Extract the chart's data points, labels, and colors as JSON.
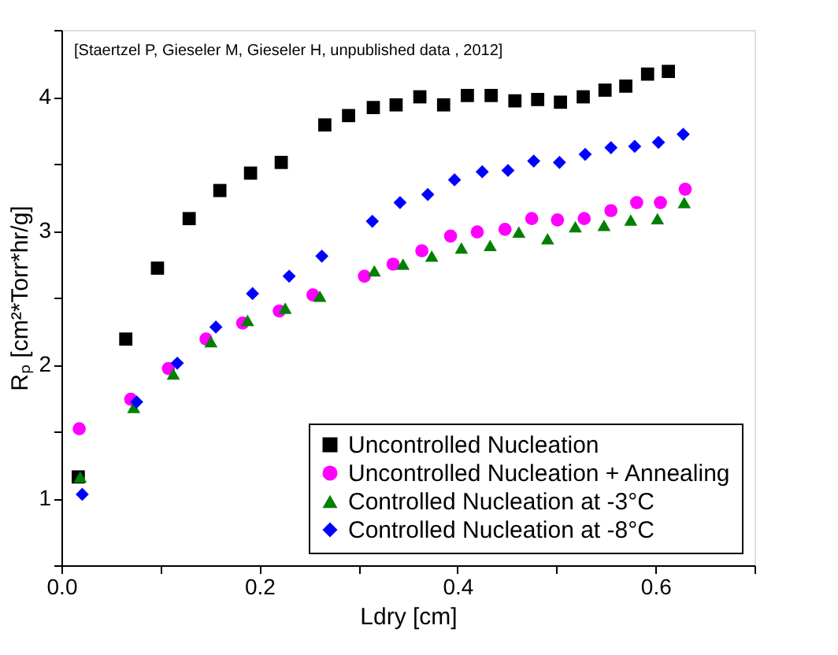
{
  "chart_data": {
    "type": "scatter",
    "xlabel": "Ldry [cm]",
    "ylabel": "Rₚ [cm²*Torr*hr/g]",
    "annotations": [
      "[Staertzel P, Gieseler M, Gieseler H, unpublished data , 2012]"
    ],
    "xlim": [
      0,
      0.7
    ],
    "ylim": [
      0.5,
      4.5
    ],
    "xticks": [
      {
        "value": 0,
        "label": "0.0"
      },
      {
        "value": 0.1,
        "label": null
      },
      {
        "value": 0.2,
        "label": "0.2"
      },
      {
        "value": 0.3,
        "label": null
      },
      {
        "value": 0.4,
        "label": "0.4"
      },
      {
        "value": 0.5,
        "label": null
      },
      {
        "value": 0.6,
        "label": "0.6"
      },
      {
        "value": 0.7,
        "label": null
      }
    ],
    "yticks": [
      {
        "value": 0.5,
        "label": null
      },
      1,
      {
        "value": 1.5,
        "label": null
      },
      2,
      {
        "value": 2.5,
        "label": null
      },
      3,
      {
        "value": 3.5,
        "label": null
      },
      4,
      {
        "value": 4.5,
        "label": null
      }
    ],
    "grid": false,
    "legend": "bottom right",
    "series": [
      {
        "name": "Uncontrolled Nucleation",
        "color": "#000000",
        "marker": "square",
        "x": [
          0.017,
          0.065,
          0.097,
          0.129,
          0.16,
          0.191,
          0.222,
          0.266,
          0.29,
          0.315,
          0.338,
          0.362,
          0.386,
          0.41,
          0.434,
          0.458,
          0.481,
          0.504,
          0.527,
          0.549,
          0.57,
          0.592,
          0.613
        ],
        "values": [
          1.16,
          2.19,
          2.72,
          3.09,
          3.3,
          3.43,
          3.51,
          3.79,
          3.86,
          3.92,
          3.94,
          4.0,
          3.94,
          4.01,
          4.01,
          3.97,
          3.98,
          3.96,
          4.0,
          4.05,
          4.08,
          4.17,
          4.19
        ]
      },
      {
        "name": "Uncontrolled Nucleation + Annealing",
        "color": "#ff00ff",
        "marker": "circle",
        "x": [
          0.018,
          0.07,
          0.108,
          0.146,
          0.183,
          0.22,
          0.254,
          0.306,
          0.335,
          0.364,
          0.393,
          0.42,
          0.448,
          0.475,
          0.501,
          0.528,
          0.555,
          0.581,
          0.605,
          0.63
        ],
        "values": [
          1.52,
          1.74,
          1.97,
          2.19,
          2.31,
          2.4,
          2.52,
          2.66,
          2.75,
          2.85,
          2.96,
          2.99,
          3.01,
          3.09,
          3.08,
          3.09,
          3.15,
          3.21,
          3.21,
          3.31
        ]
      },
      {
        "name": "Controlled Nucleation at -3°C",
        "color": "#008000",
        "marker": "triangle",
        "x": [
          0.019,
          0.073,
          0.113,
          0.151,
          0.188,
          0.226,
          0.261,
          0.316,
          0.345,
          0.374,
          0.404,
          0.433,
          0.462,
          0.491,
          0.519,
          0.548,
          0.575,
          0.602,
          0.629
        ],
        "values": [
          1.16,
          1.68,
          1.93,
          2.17,
          2.33,
          2.42,
          2.51,
          2.7,
          2.75,
          2.81,
          2.87,
          2.89,
          2.99,
          2.94,
          3.03,
          3.04,
          3.08,
          3.09,
          3.21
        ]
      },
      {
        "name": "Controlled Nucleation at -8°C",
        "color": "#0000ff",
        "marker": "diamond",
        "x": [
          0.021,
          0.076,
          0.117,
          0.156,
          0.193,
          0.23,
          0.263,
          0.314,
          0.342,
          0.37,
          0.397,
          0.425,
          0.451,
          0.477,
          0.503,
          0.529,
          0.555,
          0.579,
          0.603,
          0.628
        ],
        "values": [
          1.03,
          1.72,
          2.01,
          2.28,
          2.53,
          2.66,
          2.81,
          3.07,
          3.21,
          3.27,
          3.38,
          3.44,
          3.45,
          3.52,
          3.51,
          3.57,
          3.62,
          3.63,
          3.66,
          3.72
        ]
      }
    ]
  }
}
